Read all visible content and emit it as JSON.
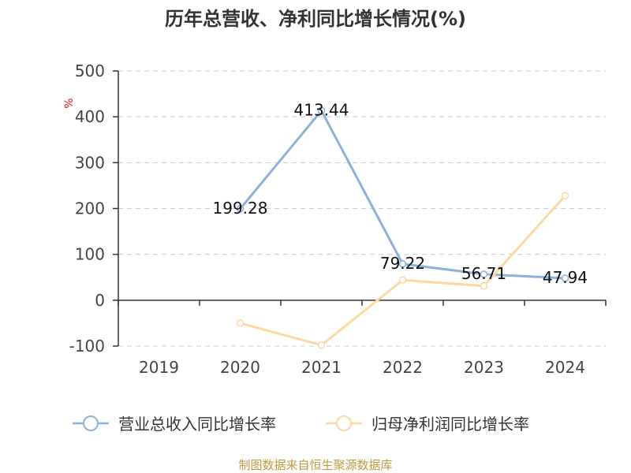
{
  "chart_data": {
    "type": "line",
    "title": "历年总营收、净利同比增长情况(%)",
    "ylabel": "%",
    "xlabel": "",
    "categories": [
      "2019",
      "2020",
      "2021",
      "2022",
      "2023",
      "2024"
    ],
    "ylim": [
      -100,
      500
    ],
    "yticks": [
      -100,
      0,
      100,
      200,
      300,
      400,
      500
    ],
    "grid": true,
    "legend": "bottom",
    "series": [
      {
        "name": "营业总收入同比增长率",
        "color": "#8fb0dc",
        "data_labels": true,
        "values": [
          null,
          199.28,
          413.44,
          79.22,
          56.71,
          47.94
        ]
      },
      {
        "name": "归母净利润同比增长率",
        "color": "#fdd99f",
        "data_labels": false,
        "values": [
          null,
          -50,
          -98,
          44,
          31,
          228
        ]
      }
    ]
  },
  "footer": "制图数据来自恒生聚源数据库"
}
